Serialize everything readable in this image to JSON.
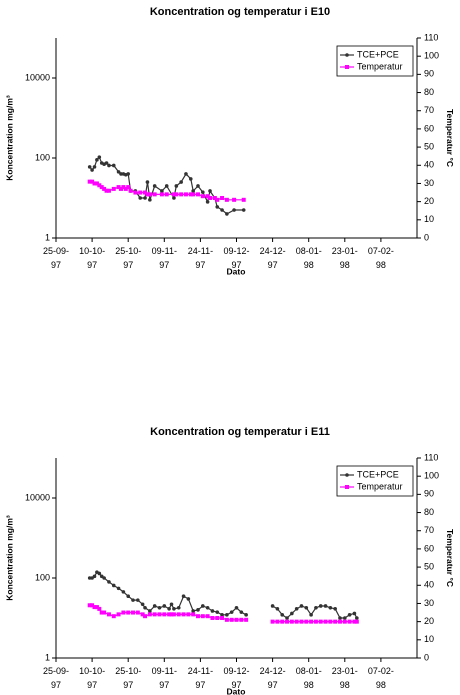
{
  "chart_data": [
    {
      "type": "line",
      "title": "Koncentration og temperatur i E10",
      "xlabel": "Dato",
      "ylabel": "Koncentration mg/m³",
      "y2label": "Temperatur °C",
      "ylog": true,
      "ylim": [
        1,
        100000
      ],
      "yticks": [
        1,
        100,
        10000
      ],
      "y2lim": [
        0,
        110
      ],
      "y2ticks": [
        0,
        10,
        20,
        30,
        40,
        50,
        60,
        70,
        80,
        90,
        100,
        110
      ],
      "xlim": [
        "1997-09-25",
        "1998-02-22"
      ],
      "xticks": [
        {
          "value": "1997-09-25",
          "label": "25-09-97"
        },
        {
          "value": "1997-10-10",
          "label": "10-10-97"
        },
        {
          "value": "1997-10-25",
          "label": "25-10-97"
        },
        {
          "value": "1997-11-09",
          "label": "09-11-97"
        },
        {
          "value": "1997-11-24",
          "label": "24-11-97"
        },
        {
          "value": "1997-12-09",
          "label": "09-12-97"
        },
        {
          "value": "1997-12-24",
          "label": "24-12-97"
        },
        {
          "value": "1998-01-08",
          "label": "08-01-98"
        },
        {
          "value": "1998-01-23",
          "label": "23-01-98"
        },
        {
          "value": "1998-02-07",
          "label": "07-02-98"
        }
      ],
      "legend": "top-right",
      "x": [
        "1997-10-09",
        "1997-10-10",
        "1997-10-11",
        "1997-10-12",
        "1997-10-13",
        "1997-10-14",
        "1997-10-15",
        "1997-10-16",
        "1997-10-17",
        "1997-10-19",
        "1997-10-21",
        "1997-10-22",
        "1997-10-23",
        "1997-10-24",
        "1997-10-25",
        "1997-10-26",
        "1997-10-28",
        "1997-10-30",
        "1997-11-01",
        "1997-11-02",
        "1997-11-03",
        "1997-11-05",
        "1997-11-08",
        "1997-11-10",
        "1997-11-13",
        "1997-11-14",
        "1997-11-16",
        "1997-11-18",
        "1997-11-20",
        "1997-11-21",
        "1997-11-23",
        "1997-11-25",
        "1997-11-27",
        "1997-11-28",
        "1997-11-30",
        "1997-12-01",
        "1997-12-03",
        "1997-12-05",
        "1997-12-08",
        "1997-12-12"
      ],
      "series": [
        {
          "name": "TCE+PCE",
          "color": "#333333",
          "axis": "y",
          "values": [
            60,
            50,
            60,
            90,
            105,
            75,
            70,
            75,
            65,
            65,
            45,
            40,
            40,
            38,
            40,
            15,
            15,
            10,
            10,
            25,
            9,
            20,
            15,
            20,
            10,
            20,
            25,
            40,
            30,
            15,
            20,
            14,
            8,
            15,
            10,
            6,
            5,
            4,
            5,
            5
          ]
        },
        {
          "name": "Temperatur",
          "color": "#ff00ff",
          "axis": "y2",
          "values": [
            31,
            31,
            30,
            30,
            29,
            28,
            27,
            26,
            26,
            27,
            28,
            27,
            28,
            27,
            28,
            26,
            25,
            25,
            25,
            24,
            24,
            24,
            24,
            24,
            24,
            24,
            24,
            24,
            24,
            24,
            24,
            23,
            23,
            22,
            22,
            21,
            22,
            21,
            21,
            21
          ]
        }
      ]
    },
    {
      "type": "line",
      "title": "Koncentration og temperatur i E11",
      "xlabel": "Dato",
      "ylabel": "Koncentration mg/m³",
      "y2label": "Temperatur °C",
      "ylog": true,
      "ylim": [
        1,
        100000
      ],
      "yticks": [
        1,
        100,
        10000
      ],
      "y2lim": [
        0,
        110
      ],
      "y2ticks": [
        0,
        10,
        20,
        30,
        40,
        50,
        60,
        70,
        80,
        90,
        100,
        110
      ],
      "xlim": [
        "1997-09-25",
        "1998-02-22"
      ],
      "xticks": [
        {
          "value": "1997-09-25",
          "label": "25-09-97"
        },
        {
          "value": "1997-10-10",
          "label": "10-10-97"
        },
        {
          "value": "1997-10-25",
          "label": "25-10-97"
        },
        {
          "value": "1997-11-09",
          "label": "09-11-97"
        },
        {
          "value": "1997-11-24",
          "label": "24-11-97"
        },
        {
          "value": "1997-12-09",
          "label": "09-12-97"
        },
        {
          "value": "1997-12-24",
          "label": "24-12-97"
        },
        {
          "value": "1998-01-08",
          "label": "08-01-98"
        },
        {
          "value": "1998-01-23",
          "label": "23-01-98"
        },
        {
          "value": "1998-02-07",
          "label": "07-02-98"
        }
      ],
      "legend": "top-right",
      "x": [
        "1997-10-09",
        "1997-10-10",
        "1997-10-11",
        "1997-10-12",
        "1997-10-13",
        "1997-10-14",
        "1997-10-15",
        "1997-10-17",
        "1997-10-19",
        "1997-10-21",
        "1997-10-23",
        "1997-10-25",
        "1997-10-27",
        "1997-10-29",
        "1997-10-31",
        "1997-11-01",
        "1997-11-03",
        "1997-11-05",
        "1997-11-07",
        "1997-11-09",
        "1997-11-11",
        "1997-11-12",
        "1997-11-13",
        "1997-11-15",
        "1997-11-17",
        "1997-11-19",
        "1997-11-21",
        "1997-11-23",
        "1997-11-25",
        "1997-11-27",
        "1997-11-29",
        "1997-12-01",
        "1997-12-03",
        "1997-12-05",
        "1997-12-07",
        "1997-12-09",
        "1997-12-11",
        "1997-12-13",
        "1997-12-18",
        "1997-12-24",
        "1997-12-26",
        "1997-12-28",
        "1997-12-30",
        "1998-01-01",
        "1998-01-03",
        "1998-01-05",
        "1998-01-07",
        "1998-01-09",
        "1998-01-11",
        "1998-01-13",
        "1998-01-15",
        "1998-01-17",
        "1998-01-19",
        "1998-01-21",
        "1998-01-23",
        "1998-01-25",
        "1998-01-27",
        "1998-01-28"
      ],
      "series": [
        {
          "name": "TCE+PCE",
          "color": "#333333",
          "axis": "y",
          "values": [
            100,
            100,
            110,
            140,
            130,
            110,
            100,
            80,
            65,
            55,
            45,
            35,
            28,
            28,
            22,
            18,
            15,
            20,
            18,
            20,
            17,
            22,
            17,
            18,
            35,
            30,
            15,
            16,
            20,
            18,
            15,
            14,
            12,
            12,
            14,
            18,
            14,
            12,
            null,
            20,
            17,
            12,
            10,
            13,
            17,
            20,
            18,
            12,
            18,
            20,
            20,
            18,
            17,
            10,
            10,
            12,
            13,
            10
          ]
        },
        {
          "name": "Temperatur",
          "color": "#ff00ff",
          "axis": "y2",
          "values": [
            29,
            29,
            28,
            28,
            27,
            25,
            25,
            24,
            23,
            24,
            25,
            25,
            25,
            25,
            24,
            23,
            24,
            24,
            24,
            24,
            24,
            24,
            24,
            24,
            24,
            24,
            24,
            23,
            23,
            23,
            22,
            22,
            22,
            21,
            21,
            21,
            21,
            21,
            null,
            20,
            20,
            20,
            20,
            20,
            20,
            20,
            20,
            20,
            20,
            20,
            20,
            20,
            20,
            20,
            20,
            20,
            20,
            20
          ]
        }
      ]
    }
  ]
}
